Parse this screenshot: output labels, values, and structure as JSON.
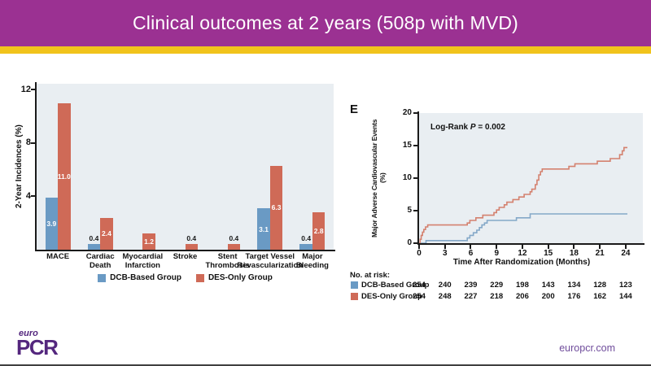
{
  "slide": {
    "title": "Clinical outcomes at 2 years (508p with MVD)",
    "footer": {
      "logo_top": "euro",
      "logo_main": "PCR",
      "website": "europcr.com"
    }
  },
  "colors": {
    "header_purple": "#9B3192",
    "accent_yellow": "#F1C31C",
    "plot_background": "#E9EEF2",
    "logo_purple": "#54277E",
    "website_purple": "#6F4C9B"
  },
  "chart_data": [
    {
      "type": "bar",
      "ylabel": "2-Year Incidences (%)",
      "ylim": [
        0,
        12.4
      ],
      "yticks": [
        4,
        8,
        12
      ],
      "grid": false,
      "legend_position": "bottom",
      "categories": [
        [
          "MACE"
        ],
        [
          "Cardiac",
          "Death"
        ],
        [
          "Myocardial",
          "Infarction"
        ],
        [
          "Stroke"
        ],
        [
          "Stent",
          "Thrombosis"
        ],
        [
          "Target Vessel",
          "Revascularization"
        ],
        [
          "Major",
          "Bleeding"
        ]
      ],
      "series": [
        {
          "name": "DCB-Based Group",
          "color": "#6A9AC4",
          "values": [
            3.9,
            0.4,
            0,
            0,
            0,
            3.1,
            0.4
          ]
        },
        {
          "name": "DES-Only Group",
          "color": "#CF6A57",
          "values": [
            11.0,
            2.4,
            1.2,
            0.4,
            0.4,
            6.3,
            2.8
          ]
        }
      ]
    },
    {
      "type": "line",
      "panel_label": "E",
      "annotation": {
        "text_before": "Log-Rank",
        "stat_symbol": "P",
        "text_after": "= 0.002"
      },
      "xlabel": "Time After Randomization (Months)",
      "ylabel": "Major Adverse Cardiovascular Events (%)",
      "xlim": [
        0,
        26
      ],
      "ylim": [
        0,
        20
      ],
      "xticks": [
        0,
        3,
        6,
        9,
        12,
        15,
        18,
        21,
        24
      ],
      "yticks": [
        0,
        5,
        10,
        15,
        20
      ],
      "grid": false,
      "series": [
        {
          "name": "DCB-Based Group",
          "color": "#84A8C8",
          "step_points": [
            [
              0,
              0
            ],
            [
              0.8,
              0.4
            ],
            [
              5.6,
              0.8
            ],
            [
              5.9,
              1.2
            ],
            [
              6.3,
              1.6
            ],
            [
              6.7,
              2.0
            ],
            [
              7.0,
              2.4
            ],
            [
              7.3,
              2.8
            ],
            [
              7.6,
              3.1
            ],
            [
              7.9,
              3.5
            ],
            [
              11.3,
              3.9
            ],
            [
              12.9,
              4.5
            ],
            [
              24.2,
              4.5
            ]
          ]
        },
        {
          "name": "DES-Only Group",
          "color": "#D4816F",
          "step_points": [
            [
              0,
              0
            ],
            [
              0.12,
              0.6
            ],
            [
              0.25,
              1.2
            ],
            [
              0.4,
              1.7
            ],
            [
              0.55,
              2.1
            ],
            [
              0.75,
              2.5
            ],
            [
              1.0,
              2.8
            ],
            [
              5.6,
              3.1
            ],
            [
              5.9,
              3.5
            ],
            [
              6.6,
              3.9
            ],
            [
              7.4,
              4.3
            ],
            [
              8.7,
              4.7
            ],
            [
              9.0,
              5.1
            ],
            [
              9.3,
              5.5
            ],
            [
              9.9,
              5.9
            ],
            [
              10.2,
              6.3
            ],
            [
              10.9,
              6.7
            ],
            [
              11.6,
              7.1
            ],
            [
              12.2,
              7.5
            ],
            [
              12.9,
              7.9
            ],
            [
              13.1,
              8.3
            ],
            [
              13.5,
              9.0
            ],
            [
              13.7,
              9.7
            ],
            [
              13.9,
              10.5
            ],
            [
              14.1,
              11.0
            ],
            [
              14.3,
              11.4
            ],
            [
              17.4,
              11.8
            ],
            [
              18.1,
              12.2
            ],
            [
              20.7,
              12.6
            ],
            [
              22.2,
              13.0
            ],
            [
              23.3,
              13.6
            ],
            [
              23.6,
              14.2
            ],
            [
              23.8,
              14.7
            ],
            [
              24.2,
              14.7
            ]
          ]
        }
      ]
    }
  ],
  "at_risk": {
    "label": "No. at risk:",
    "months": [
      0,
      3,
      6,
      9,
      12,
      15,
      18,
      21,
      24
    ],
    "rows": [
      {
        "name": "DCB-Based Group",
        "color": "#6A9AC4",
        "values": [
          254,
          240,
          239,
          229,
          198,
          143,
          134,
          128,
          123
        ]
      },
      {
        "name": "DES-Only Group",
        "color": "#CF6A57",
        "values": [
          254,
          248,
          227,
          218,
          206,
          200,
          176,
          162,
          144
        ]
      }
    ]
  }
}
